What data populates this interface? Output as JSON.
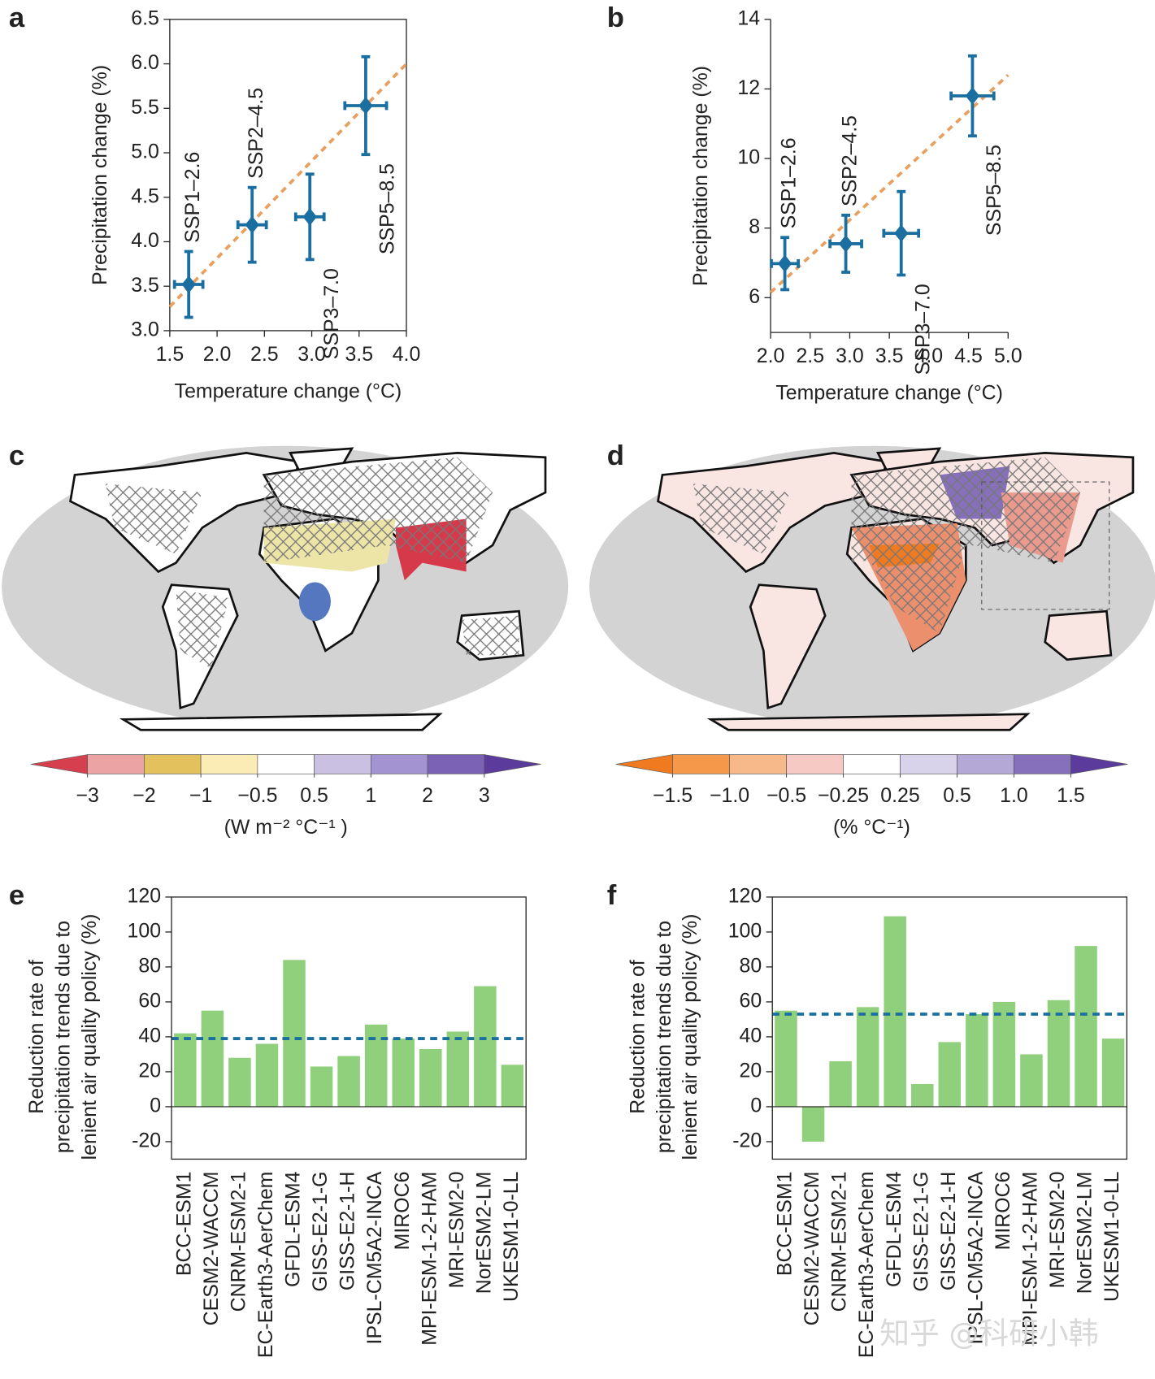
{
  "chart_data": [
    {
      "type": "scatter",
      "panel": "a",
      "box": true,
      "xlabel": "Temperature change (°C)",
      "ylabel": "Precipitation change (%)",
      "xlim": [
        1.5,
        4.0
      ],
      "ylim": [
        3.0,
        6.5
      ],
      "xticks": [
        1.5,
        {
          "value": 2,
          "label": "2.0"
        },
        2.5,
        {
          "value": 3,
          "label": "3.0"
        },
        3.5,
        {
          "value": 4,
          "label": "4.0"
        }
      ],
      "yticks": [
        {
          "value": 3,
          "label": "3.0"
        },
        3.5,
        {
          "value": 4,
          "label": "4.0"
        },
        4.5,
        {
          "value": 5,
          "label": "5.0"
        },
        5.5,
        {
          "value": 6,
          "label": "6.0"
        },
        6.5
      ],
      "series": [
        {
          "color": "#1a6fa0",
          "x": [
            1.7,
            2.37,
            2.98,
            3.57
          ],
          "values": [
            3.52,
            4.19,
            4.28,
            5.53
          ],
          "xerr": [
            0.15,
            0.15,
            0.15,
            0.22
          ],
          "yerr": [
            0.37,
            0.42,
            0.48,
            0.55
          ],
          "labels": [
            "SSP1–2.6",
            "SSP2–4.5",
            "SSP3–7.0",
            "SSP5–8.5"
          ],
          "label_positions": [
            "above",
            "above",
            "below",
            "below"
          ]
        }
      ],
      "fit_line": {
        "color": "#e8a060",
        "x": [
          1.5,
          4.0
        ],
        "values": [
          3.27,
          6.0
        ]
      }
    },
    {
      "type": "scatter",
      "panel": "b",
      "box": false,
      "xlabel": "Temperature change (°C)",
      "ylabel": "Precipitation change (%)",
      "xlim": [
        2.0,
        5.0
      ],
      "ylim": [
        5,
        14
      ],
      "xticks": [
        {
          "value": 2,
          "label": "2.0"
        },
        2.5,
        {
          "value": 3,
          "label": "3.0"
        },
        3.5,
        {
          "value": 4,
          "label": "4.0"
        },
        4.5,
        {
          "value": 5,
          "label": "5.0"
        }
      ],
      "yticks": [
        6,
        8,
        10,
        12,
        14
      ],
      "series": [
        {
          "color": "#1a6fa0",
          "x": [
            2.18,
            2.95,
            3.65,
            4.55
          ],
          "values": [
            6.98,
            7.55,
            7.85,
            11.8
          ],
          "xerr": [
            0.17,
            0.2,
            0.22,
            0.27
          ],
          "yerr": [
            0.75,
            0.82,
            1.2,
            1.15
          ],
          "labels": [
            "SSP1–2.6",
            "SSP2–4.5",
            "SSP3–7.0",
            "SSP5–8.5"
          ],
          "label_positions": [
            "above",
            "above",
            "below",
            "below"
          ]
        }
      ],
      "fit_line": {
        "color": "#e8a060",
        "x": [
          2.0,
          5.0
        ],
        "values": [
          6.15,
          12.4
        ]
      }
    },
    {
      "type": "map",
      "panel": "c",
      "colorbar": {
        "label": "(W m⁻² °C⁻¹ )",
        "ticks": [
          {
            "value": -3,
            "label": "−3"
          },
          {
            "value": -2,
            "label": "−2"
          },
          {
            "value": -1,
            "label": "−1"
          },
          {
            "value": -0.5,
            "label": "−0.5"
          },
          0.5,
          1,
          2,
          3
        ],
        "colors": [
          "#d6404e",
          "#eba3a3",
          "#e3c25e",
          "#fbebb4",
          "#ffffff",
          "#c9c0e2",
          "#a393d0",
          "#7c62b4",
          "#5b3c9c"
        ]
      }
    },
    {
      "type": "map",
      "panel": "d",
      "colorbar": {
        "label": "(% °C⁻¹)",
        "ticks": [
          {
            "value": -1.5,
            "label": "−1.5"
          },
          {
            "value": -1,
            "label": "−1.0"
          },
          {
            "value": -0.5,
            "label": "−0.5"
          },
          {
            "value": -0.25,
            "label": "−0.25"
          },
          0.25,
          0.5,
          {
            "value": 1,
            "label": "1.0"
          },
          1.5
        ],
        "colors": [
          "#f07a20",
          "#f5984a",
          "#f8b98a",
          "#f6c9c4",
          "#ffffff",
          "#d8d2ea",
          "#b4a8d6",
          "#8670bc",
          "#5b3c9c"
        ]
      }
    },
    {
      "type": "bar",
      "panel": "e",
      "color": "#90cf7c",
      "ylabel": [
        "Reduction rate of",
        "precipitation trends due to",
        "lenient air quality policy (%)"
      ],
      "categories": [
        "BCC-ESM1",
        "CESM2-WACCM",
        "CNRM-ESM2-1",
        "EC-Earth3-AerChem",
        "GFDL-ESM4",
        "GISS-E2-1-G",
        "GISS-E2-1-H",
        "IPSL-CM5A2-INCA",
        "MIROC6",
        "MPI-ESM-1-2-HAM",
        "MRI-ESM2-0",
        "NorESM2-LM",
        "UKESM1-0-LL"
      ],
      "values": [
        42,
        55,
        28,
        36,
        84,
        23,
        29,
        47,
        39,
        33,
        43,
        69,
        24
      ],
      "ylim": [
        -30,
        120
      ],
      "yticks": [
        -20,
        0,
        20,
        40,
        60,
        80,
        100,
        120
      ],
      "reference_line": {
        "value": 39,
        "color": "#1a6fa0"
      }
    },
    {
      "type": "bar",
      "panel": "f",
      "color": "#90cf7c",
      "ylabel": [
        "Reduction rate of",
        "precipitation trends due to",
        "lenient air quality policy (%)"
      ],
      "categories": [
        "BCC-ESM1",
        "CESM2-WACCM",
        "CNRM-ESM2-1",
        "EC-Earth3-AerChem",
        "GFDL-ESM4",
        "GISS-E2-1-G",
        "GISS-E2-1-H",
        "IPSL-CM5A2-INCA",
        "MIROC6",
        "MPI-ESM-1-2-HAM",
        "MRI-ESM2-0",
        "NorESM2-LM",
        "UKESM1-0-LL"
      ],
      "values": [
        55,
        -20,
        26,
        57,
        109,
        13,
        37,
        53,
        60,
        30,
        61,
        92,
        39
      ],
      "ylim": [
        -30,
        120
      ],
      "yticks": [
        -20,
        0,
        20,
        40,
        60,
        80,
        100,
        120
      ],
      "reference_line": {
        "value": 53,
        "color": "#1a6fa0"
      }
    }
  ],
  "watermark": "知乎 @科研小韩"
}
